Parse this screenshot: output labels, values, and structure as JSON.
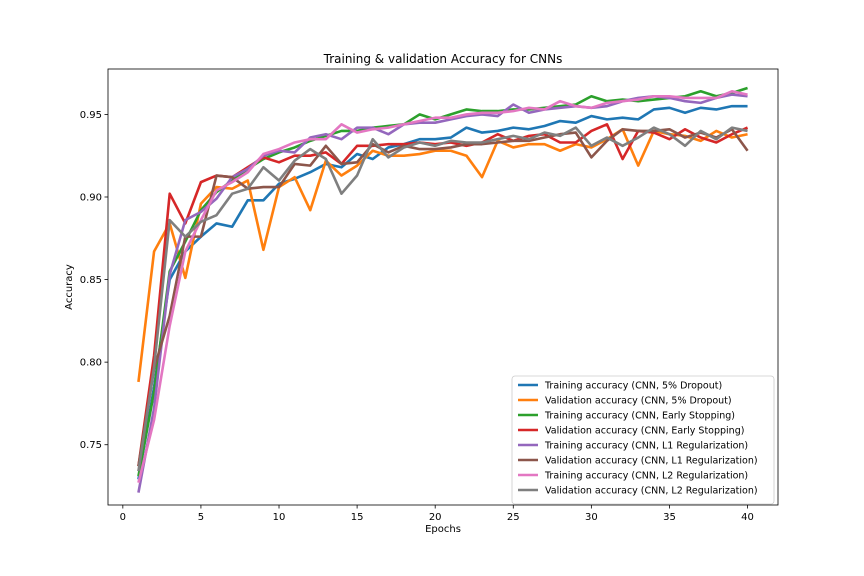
{
  "chart_data": {
    "type": "line",
    "title": "Training & validation Accuracy for CNNs",
    "xlabel": "Epochs",
    "ylabel": "Accuracy",
    "xlim": [
      -0.95,
      41.95
    ],
    "ylim": [
      0.7135,
      0.9775
    ],
    "xticks": [
      0,
      5,
      10,
      15,
      20,
      25,
      30,
      35,
      40
    ],
    "yticks": [
      0.75,
      0.8,
      0.85,
      0.9,
      0.95
    ],
    "ytick_labels": [
      "0.75",
      "0.80",
      "0.85",
      "0.90",
      "0.95"
    ],
    "grid": false,
    "legend_position": "lower-right",
    "x": [
      1,
      2,
      3,
      4,
      5,
      6,
      7,
      8,
      9,
      10,
      11,
      12,
      13,
      14,
      15,
      16,
      17,
      18,
      19,
      20,
      21,
      22,
      23,
      24,
      25,
      26,
      27,
      28,
      29,
      30,
      31,
      32,
      33,
      34,
      35,
      36,
      37,
      38,
      39,
      40
    ],
    "series": [
      {
        "name": "Training accuracy (CNN, 5% Dropout)",
        "color": "#1f77b4",
        "values": [
          0.729,
          0.785,
          0.85,
          0.867,
          0.876,
          0.884,
          0.882,
          0.898,
          0.898,
          0.908,
          0.911,
          0.915,
          0.92,
          0.918,
          0.926,
          0.923,
          0.93,
          0.932,
          0.935,
          0.935,
          0.936,
          0.942,
          0.939,
          0.94,
          0.942,
          0.941,
          0.943,
          0.946,
          0.945,
          0.949,
          0.947,
          0.948,
          0.947,
          0.953,
          0.954,
          0.951,
          0.954,
          0.953,
          0.955,
          0.955
        ]
      },
      {
        "name": "Validation accuracy (CNN, 5% Dropout)",
        "color": "#ff7f0e",
        "values": [
          0.788,
          0.867,
          0.884,
          0.851,
          0.896,
          0.906,
          0.905,
          0.91,
          0.868,
          0.906,
          0.912,
          0.892,
          0.922,
          0.913,
          0.919,
          0.928,
          0.925,
          0.925,
          0.926,
          0.928,
          0.928,
          0.925,
          0.912,
          0.934,
          0.93,
          0.932,
          0.932,
          0.928,
          0.932,
          0.93,
          0.935,
          0.941,
          0.919,
          0.94,
          0.938,
          0.937,
          0.934,
          0.94,
          0.936,
          0.938
        ]
      },
      {
        "name": "Training accuracy (CNN, Early Stopping)",
        "color": "#2ca02c",
        "values": [
          0.731,
          0.782,
          0.855,
          0.873,
          0.892,
          0.903,
          0.91,
          0.917,
          0.923,
          0.927,
          0.93,
          0.934,
          0.937,
          0.94,
          0.94,
          0.942,
          0.943,
          0.944,
          0.95,
          0.947,
          0.95,
          0.953,
          0.952,
          0.952,
          0.953,
          0.953,
          0.954,
          0.955,
          0.956,
          0.961,
          0.958,
          0.959,
          0.958,
          0.959,
          0.96,
          0.961,
          0.964,
          0.961,
          0.963,
          0.966
        ]
      },
      {
        "name": "Validation accuracy (CNN, Early Stopping)",
        "color": "#d62728",
        "values": [
          0.737,
          0.804,
          0.902,
          0.884,
          0.909,
          0.913,
          0.912,
          0.918,
          0.924,
          0.921,
          0.925,
          0.925,
          0.927,
          0.92,
          0.931,
          0.931,
          0.932,
          0.932,
          0.933,
          0.932,
          0.933,
          0.931,
          0.933,
          0.938,
          0.934,
          0.937,
          0.938,
          0.933,
          0.933,
          0.94,
          0.944,
          0.923,
          0.94,
          0.939,
          0.935,
          0.941,
          0.936,
          0.933,
          0.938,
          0.942
        ]
      },
      {
        "name": "Training accuracy (CNN, L1 Regularization)",
        "color": "#9467bd",
        "values": [
          0.721,
          0.772,
          0.853,
          0.886,
          0.891,
          0.899,
          0.912,
          0.917,
          0.925,
          0.928,
          0.927,
          0.936,
          0.938,
          0.935,
          0.942,
          0.942,
          0.938,
          0.944,
          0.945,
          0.945,
          0.947,
          0.949,
          0.95,
          0.949,
          0.956,
          0.951,
          0.953,
          0.954,
          0.955,
          0.954,
          0.955,
          0.958,
          0.96,
          0.961,
          0.96,
          0.958,
          0.957,
          0.96,
          0.962,
          0.961
        ]
      },
      {
        "name": "Validation accuracy (CNN, L1 Regularization)",
        "color": "#8c564b",
        "values": [
          0.737,
          0.796,
          0.828,
          0.876,
          0.876,
          0.913,
          0.912,
          0.905,
          0.906,
          0.906,
          0.92,
          0.919,
          0.931,
          0.92,
          0.921,
          0.932,
          0.927,
          0.931,
          0.929,
          0.929,
          0.93,
          0.932,
          0.932,
          0.933,
          0.934,
          0.934,
          0.936,
          0.938,
          0.939,
          0.924,
          0.934,
          0.941,
          0.94,
          0.94,
          0.941,
          0.936,
          0.939,
          0.936,
          0.941,
          0.928
        ]
      },
      {
        "name": "Training accuracy (CNN, L2 Regularization)",
        "color": "#e377c2",
        "values": [
          0.727,
          0.765,
          0.822,
          0.867,
          0.886,
          0.904,
          0.909,
          0.915,
          0.926,
          0.929,
          0.933,
          0.935,
          0.935,
          0.944,
          0.939,
          0.941,
          0.942,
          0.944,
          0.946,
          0.948,
          0.948,
          0.95,
          0.951,
          0.951,
          0.952,
          0.954,
          0.953,
          0.958,
          0.955,
          0.954,
          0.957,
          0.958,
          0.959,
          0.961,
          0.961,
          0.96,
          0.96,
          0.96,
          0.964,
          0.962
        ]
      },
      {
        "name": "Validation accuracy (CNN, L2 Regularization)",
        "color": "#7f7f7f",
        "values": [
          0.734,
          0.797,
          0.886,
          0.876,
          0.885,
          0.889,
          0.902,
          0.905,
          0.918,
          0.91,
          0.922,
          0.929,
          0.923,
          0.902,
          0.913,
          0.935,
          0.924,
          0.93,
          0.933,
          0.931,
          0.934,
          0.933,
          0.933,
          0.935,
          0.937,
          0.935,
          0.939,
          0.937,
          0.942,
          0.931,
          0.936,
          0.931,
          0.936,
          0.942,
          0.938,
          0.931,
          0.94,
          0.935,
          0.942,
          0.94
        ]
      }
    ]
  }
}
